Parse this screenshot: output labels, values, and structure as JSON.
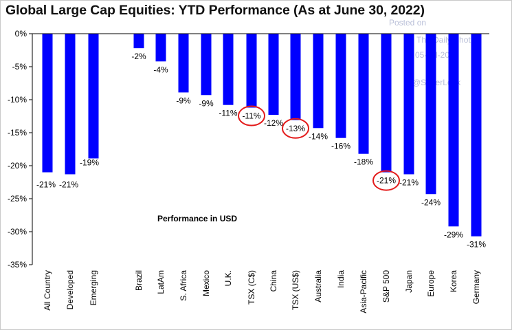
{
  "chart_data": {
    "type": "bar",
    "title": "Global Large Cap Equities: YTD Performance (As at June 30, 2022)",
    "annotation": "Performance in USD",
    "categories": [
      "All Country",
      "Developed",
      "Emerging",
      "Brazil",
      "LatAm",
      "S. Africa",
      "Mexico",
      "U.K.",
      "TSX (C$)",
      "China",
      "TSX (US$)",
      "Australia",
      "India",
      "Asia-Pacific",
      "S&P 500",
      "Japan",
      "Europe",
      "Korea",
      "Germany"
    ],
    "values": [
      -21.0,
      -21.3,
      -18.9,
      -2.2,
      -4.2,
      -8.9,
      -9.3,
      -10.8,
      -11.2,
      -12.3,
      -13.1,
      -14.3,
      -15.8,
      -18.2,
      -21.0,
      -21.3,
      -24.3,
      -29.2,
      -30.7
    ],
    "data_labels": [
      "-21%",
      "-21%",
      "-19%",
      "-2%",
      "-4%",
      "-9%",
      "-9%",
      "-11%",
      "-11%",
      "-12%",
      "-13%",
      "-14%",
      "-16%",
      "-18%",
      "-21%",
      "-21%",
      "-24%",
      "-29%",
      "-31%"
    ],
    "ylim": [
      -35,
      0
    ],
    "yticks": [
      0,
      -5,
      -10,
      -15,
      -20,
      -25,
      -30,
      -35
    ],
    "ytick_labels": [
      "0%",
      "-5%",
      "-10%",
      "-15%",
      "-20%",
      "-25%",
      "-30%",
      "-35%"
    ],
    "groups": [
      [
        0,
        2
      ],
      [
        3,
        18
      ]
    ],
    "highlighted": [
      "TSX (C$)",
      "TSX (US$)",
      "S&P 500"
    ],
    "grid": false,
    "xlabel": "",
    "ylabel": ""
  },
  "colors": {
    "bar": "#0000ff",
    "highlight_circle": "#e31b1b",
    "axis": "#000000"
  },
  "watermark": {
    "line1": "Posted on",
    "line2": "The Daily Shot",
    "line3": "05-Jul-2022",
    "line4": "@SoberLook"
  }
}
